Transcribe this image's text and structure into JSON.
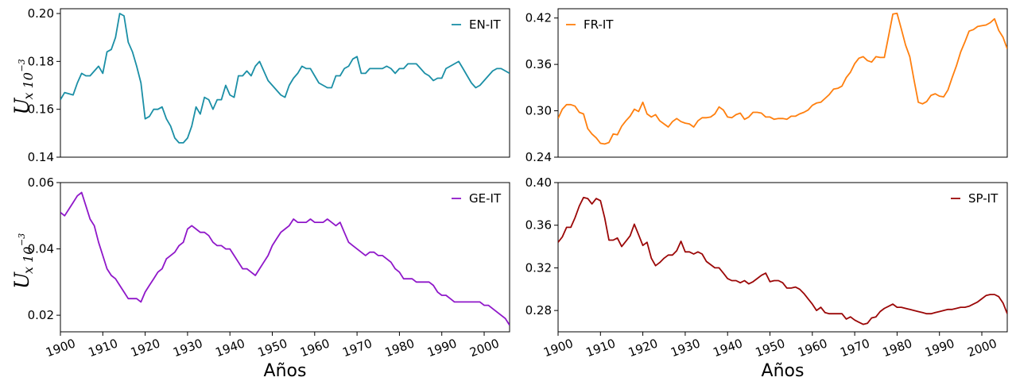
{
  "chart_data": [
    {
      "type": "line",
      "ylabel_main": "U",
      "ylabel_sub": "x 10",
      "ylabel_exp": "−3",
      "xlabel": "",
      "ylim": [
        0.14,
        0.202
      ],
      "yticks": [
        "0.14",
        "0.16",
        "0.18",
        "0.20"
      ],
      "ytick_values": [
        0.14,
        0.16,
        0.18,
        0.2
      ],
      "xlim": [
        1900,
        2006
      ],
      "xticks": [],
      "legend": "top-right",
      "series": [
        {
          "name": "EN-IT",
          "color": "#1b8fa6",
          "x": [
            1900,
            1901,
            1903,
            1904,
            1905,
            1906,
            1907,
            1909,
            1910,
            1911,
            1912,
            1913,
            1914,
            1915,
            1916,
            1917,
            1918,
            1919,
            1920,
            1921,
            1922,
            1923,
            1924,
            1925,
            1926,
            1927,
            1928,
            1929,
            1930,
            1931,
            1932,
            1933,
            1934,
            1935,
            1936,
            1937,
            1938,
            1939,
            1940,
            1941,
            1942,
            1943,
            1944,
            1945,
            1946,
            1947,
            1948,
            1949,
            1950,
            1952,
            1953,
            1954,
            1955,
            1956,
            1957,
            1958,
            1959,
            1960,
            1961,
            1962,
            1963,
            1964,
            1965,
            1966,
            1967,
            1968,
            1969,
            1970,
            1971,
            1972,
            1973,
            1974,
            1975,
            1976,
            1977,
            1978,
            1979,
            1980,
            1981,
            1982,
            1983,
            1984,
            1985,
            1986,
            1987,
            1988,
            1989,
            1990,
            1991,
            1992,
            1993,
            1994,
            1995,
            1996,
            1997,
            1998,
            1999,
            2000,
            2001,
            2002,
            2003,
            2004,
            2005,
            2006
          ],
          "values": [
            0.164,
            0.167,
            0.166,
            0.171,
            0.175,
            0.174,
            0.174,
            0.178,
            0.175,
            0.184,
            0.185,
            0.19,
            0.2,
            0.199,
            0.188,
            0.184,
            0.178,
            0.171,
            0.156,
            0.157,
            0.16,
            0.16,
            0.161,
            0.156,
            0.153,
            0.148,
            0.146,
            0.146,
            0.148,
            0.153,
            0.161,
            0.158,
            0.165,
            0.164,
            0.16,
            0.164,
            0.164,
            0.17,
            0.166,
            0.165,
            0.174,
            0.174,
            0.176,
            0.174,
            0.178,
            0.18,
            0.176,
            0.172,
            0.17,
            0.166,
            0.165,
            0.17,
            0.173,
            0.175,
            0.178,
            0.177,
            0.177,
            0.174,
            0.171,
            0.17,
            0.169,
            0.169,
            0.174,
            0.174,
            0.177,
            0.178,
            0.181,
            0.182,
            0.175,
            0.175,
            0.177,
            0.177,
            0.177,
            0.177,
            0.178,
            0.177,
            0.175,
            0.177,
            0.177,
            0.179,
            0.179,
            0.179,
            0.177,
            0.175,
            0.174,
            0.172,
            0.173,
            0.173,
            0.177,
            0.178,
            0.179,
            0.18,
            0.177,
            0.174,
            0.171,
            0.169,
            0.17,
            0.172,
            0.174,
            0.176,
            0.177,
            0.177,
            0.176,
            0.175
          ]
        }
      ]
    },
    {
      "type": "line",
      "xlabel": "",
      "ylim": [
        0.24,
        0.432
      ],
      "yticks": [
        "0.24",
        "0.30",
        "0.36",
        "0.42"
      ],
      "ytick_values": [
        0.24,
        0.3,
        0.36,
        0.42
      ],
      "xlim": [
        1900,
        2006
      ],
      "xticks": [],
      "legend": "top-left",
      "series": [
        {
          "name": "FR-IT",
          "color": "#ff7f0e",
          "x": [
            1900,
            1901,
            1902,
            1903,
            1904,
            1905,
            1906,
            1907,
            1908,
            1909,
            1910,
            1911,
            1912,
            1913,
            1914,
            1915,
            1916,
            1917,
            1918,
            1919,
            1920,
            1921,
            1922,
            1923,
            1924,
            1925,
            1926,
            1927,
            1928,
            1929,
            1930,
            1931,
            1932,
            1933,
            1934,
            1935,
            1936,
            1937,
            1938,
            1939,
            1940,
            1941,
            1942,
            1943,
            1944,
            1945,
            1946,
            1947,
            1948,
            1949,
            1950,
            1951,
            1952,
            1953,
            1954,
            1955,
            1956,
            1957,
            1958,
            1959,
            1960,
            1961,
            1962,
            1963,
            1964,
            1965,
            1966,
            1967,
            1968,
            1969,
            1970,
            1971,
            1972,
            1973,
            1974,
            1975,
            1976,
            1977,
            1978,
            1979,
            1980,
            1981,
            1982,
            1983,
            1984,
            1985,
            1986,
            1987,
            1988,
            1989,
            1990,
            1991,
            1992,
            1993,
            1994,
            1995,
            1996,
            1997,
            1998,
            1999,
            2000,
            2001,
            2002,
            2003,
            2004,
            2005,
            2006
          ],
          "values": [
            0.29,
            0.302,
            0.308,
            0.308,
            0.306,
            0.298,
            0.296,
            0.277,
            0.27,
            0.265,
            0.258,
            0.257,
            0.259,
            0.27,
            0.269,
            0.28,
            0.287,
            0.293,
            0.302,
            0.299,
            0.311,
            0.296,
            0.292,
            0.295,
            0.287,
            0.283,
            0.279,
            0.286,
            0.29,
            0.286,
            0.284,
            0.283,
            0.279,
            0.287,
            0.291,
            0.291,
            0.292,
            0.296,
            0.305,
            0.301,
            0.292,
            0.291,
            0.295,
            0.297,
            0.289,
            0.292,
            0.298,
            0.298,
            0.297,
            0.292,
            0.292,
            0.289,
            0.29,
            0.29,
            0.289,
            0.293,
            0.293,
            0.296,
            0.298,
            0.301,
            0.307,
            0.31,
            0.311,
            0.316,
            0.321,
            0.328,
            0.329,
            0.332,
            0.343,
            0.35,
            0.361,
            0.368,
            0.37,
            0.365,
            0.363,
            0.37,
            0.369,
            0.369,
            0.397,
            0.425,
            0.426,
            0.406,
            0.385,
            0.37,
            0.34,
            0.311,
            0.309,
            0.312,
            0.32,
            0.322,
            0.319,
            0.318,
            0.327,
            0.343,
            0.358,
            0.376,
            0.389,
            0.403,
            0.405,
            0.409,
            0.41,
            0.411,
            0.414,
            0.419,
            0.404,
            0.395,
            0.38
          ]
        }
      ]
    },
    {
      "type": "line",
      "ylabel_main": "U",
      "ylabel_sub": "x 10",
      "ylabel_exp": "−3",
      "xlabel": "Años",
      "ylim": [
        0.015,
        0.06
      ],
      "yticks": [
        "0.02",
        "0.04",
        "0.06"
      ],
      "ytick_values": [
        0.02,
        0.04,
        0.06
      ],
      "xlim": [
        1900,
        2006
      ],
      "xticks": [
        "1900",
        "1910",
        "1920",
        "1930",
        "1940",
        "1950",
        "1960",
        "1970",
        "1980",
        "1990",
        "2000"
      ],
      "xtick_values": [
        1900,
        1910,
        1920,
        1930,
        1940,
        1950,
        1960,
        1970,
        1980,
        1990,
        2000
      ],
      "legend": "top-right",
      "series": [
        {
          "name": "GE-IT",
          "color": "#8f17c9",
          "x": [
            1900,
            1901,
            1902,
            1903,
            1904,
            1905,
            1906,
            1907,
            1908,
            1909,
            1910,
            1911,
            1912,
            1913,
            1914,
            1915,
            1916,
            1917,
            1918,
            1919,
            1920,
            1921,
            1922,
            1923,
            1924,
            1925,
            1926,
            1927,
            1928,
            1929,
            1930,
            1931,
            1932,
            1933,
            1934,
            1935,
            1936,
            1937,
            1938,
            1939,
            1940,
            1941,
            1942,
            1943,
            1944,
            1945,
            1946,
            1947,
            1948,
            1949,
            1950,
            1951,
            1952,
            1953,
            1954,
            1955,
            1956,
            1957,
            1958,
            1959,
            1960,
            1961,
            1962,
            1963,
            1964,
            1965,
            1966,
            1967,
            1968,
            1969,
            1970,
            1971,
            1972,
            1973,
            1974,
            1975,
            1976,
            1977,
            1978,
            1979,
            1980,
            1981,
            1982,
            1983,
            1984,
            1985,
            1986,
            1987,
            1988,
            1989,
            1990,
            1991,
            1992,
            1993,
            1994,
            1995,
            1996,
            1997,
            1998,
            1999,
            2000,
            2001,
            2002,
            2003,
            2004,
            2005,
            2006
          ],
          "values": [
            0.051,
            0.05,
            0.052,
            0.054,
            0.056,
            0.057,
            0.053,
            0.049,
            0.047,
            0.042,
            0.038,
            0.034,
            0.032,
            0.031,
            0.029,
            0.027,
            0.025,
            0.025,
            0.025,
            0.024,
            0.027,
            0.029,
            0.031,
            0.033,
            0.034,
            0.037,
            0.038,
            0.039,
            0.041,
            0.042,
            0.046,
            0.047,
            0.046,
            0.045,
            0.045,
            0.044,
            0.042,
            0.041,
            0.041,
            0.04,
            0.04,
            0.038,
            0.036,
            0.034,
            0.034,
            0.033,
            0.032,
            0.034,
            0.036,
            0.038,
            0.041,
            0.043,
            0.045,
            0.046,
            0.047,
            0.049,
            0.048,
            0.048,
            0.048,
            0.049,
            0.048,
            0.048,
            0.048,
            0.049,
            0.048,
            0.047,
            0.048,
            0.045,
            0.042,
            0.041,
            0.04,
            0.039,
            0.038,
            0.039,
            0.039,
            0.038,
            0.038,
            0.037,
            0.036,
            0.034,
            0.033,
            0.031,
            0.031,
            0.031,
            0.03,
            0.03,
            0.03,
            0.03,
            0.029,
            0.027,
            0.026,
            0.026,
            0.025,
            0.024,
            0.024,
            0.024,
            0.024,
            0.024,
            0.024,
            0.024,
            0.023,
            0.023,
            0.022,
            0.021,
            0.02,
            0.019,
            0.017
          ]
        }
      ]
    },
    {
      "type": "line",
      "xlabel": "Años",
      "ylim": [
        0.26,
        0.4
      ],
      "yticks": [
        "0.28",
        "0.32",
        "0.36",
        "0.40"
      ],
      "ytick_values": [
        0.28,
        0.32,
        0.36,
        0.4
      ],
      "xlim": [
        1900,
        2006
      ],
      "xticks": [
        "1900",
        "1910",
        "1920",
        "1930",
        "1940",
        "1950",
        "1960",
        "1970",
        "1980",
        "1990",
        "2000"
      ],
      "xtick_values": [
        1900,
        1910,
        1920,
        1930,
        1940,
        1950,
        1960,
        1970,
        1980,
        1990,
        2000
      ],
      "legend": "top-right",
      "series": [
        {
          "name": "SP-IT",
          "color": "#9b0707",
          "x": [
            1900,
            1901,
            1902,
            1903,
            1904,
            1905,
            1906,
            1907,
            1908,
            1909,
            1910,
            1911,
            1912,
            1913,
            1914,
            1915,
            1916,
            1917,
            1918,
            1919,
            1920,
            1921,
            1922,
            1923,
            1924,
            1925,
            1926,
            1927,
            1928,
            1929,
            1930,
            1931,
            1932,
            1933,
            1934,
            1935,
            1936,
            1937,
            1938,
            1939,
            1940,
            1941,
            1942,
            1943,
            1944,
            1945,
            1946,
            1947,
            1948,
            1949,
            1950,
            1951,
            1952,
            1953,
            1954,
            1955,
            1956,
            1957,
            1958,
            1959,
            1960,
            1961,
            1962,
            1963,
            1964,
            1965,
            1966,
            1967,
            1968,
            1969,
            1970,
            1971,
            1972,
            1973,
            1974,
            1975,
            1976,
            1977,
            1978,
            1979,
            1980,
            1981,
            1982,
            1983,
            1984,
            1985,
            1986,
            1987,
            1988,
            1989,
            1990,
            1991,
            1992,
            1993,
            1994,
            1995,
            1996,
            1997,
            1998,
            1999,
            2000,
            2001,
            2002,
            2003,
            2004,
            2005,
            2006
          ],
          "values": [
            0.344,
            0.349,
            0.358,
            0.358,
            0.367,
            0.378,
            0.386,
            0.385,
            0.38,
            0.385,
            0.383,
            0.367,
            0.346,
            0.346,
            0.348,
            0.34,
            0.345,
            0.35,
            0.361,
            0.351,
            0.341,
            0.344,
            0.329,
            0.322,
            0.325,
            0.329,
            0.332,
            0.332,
            0.336,
            0.345,
            0.335,
            0.335,
            0.333,
            0.335,
            0.333,
            0.326,
            0.323,
            0.32,
            0.32,
            0.315,
            0.31,
            0.308,
            0.308,
            0.306,
            0.308,
            0.305,
            0.307,
            0.31,
            0.313,
            0.315,
            0.307,
            0.308,
            0.308,
            0.306,
            0.301,
            0.301,
            0.302,
            0.3,
            0.296,
            0.291,
            0.286,
            0.28,
            0.283,
            0.278,
            0.277,
            0.277,
            0.277,
            0.277,
            0.272,
            0.274,
            0.271,
            0.269,
            0.267,
            0.268,
            0.273,
            0.274,
            0.279,
            0.282,
            0.284,
            0.286,
            0.283,
            0.283,
            0.282,
            0.281,
            0.28,
            0.279,
            0.278,
            0.277,
            0.277,
            0.278,
            0.279,
            0.28,
            0.281,
            0.281,
            0.282,
            0.283,
            0.283,
            0.284,
            0.286,
            0.288,
            0.291,
            0.294,
            0.295,
            0.295,
            0.293,
            0.287,
            0.277
          ]
        }
      ]
    }
  ]
}
